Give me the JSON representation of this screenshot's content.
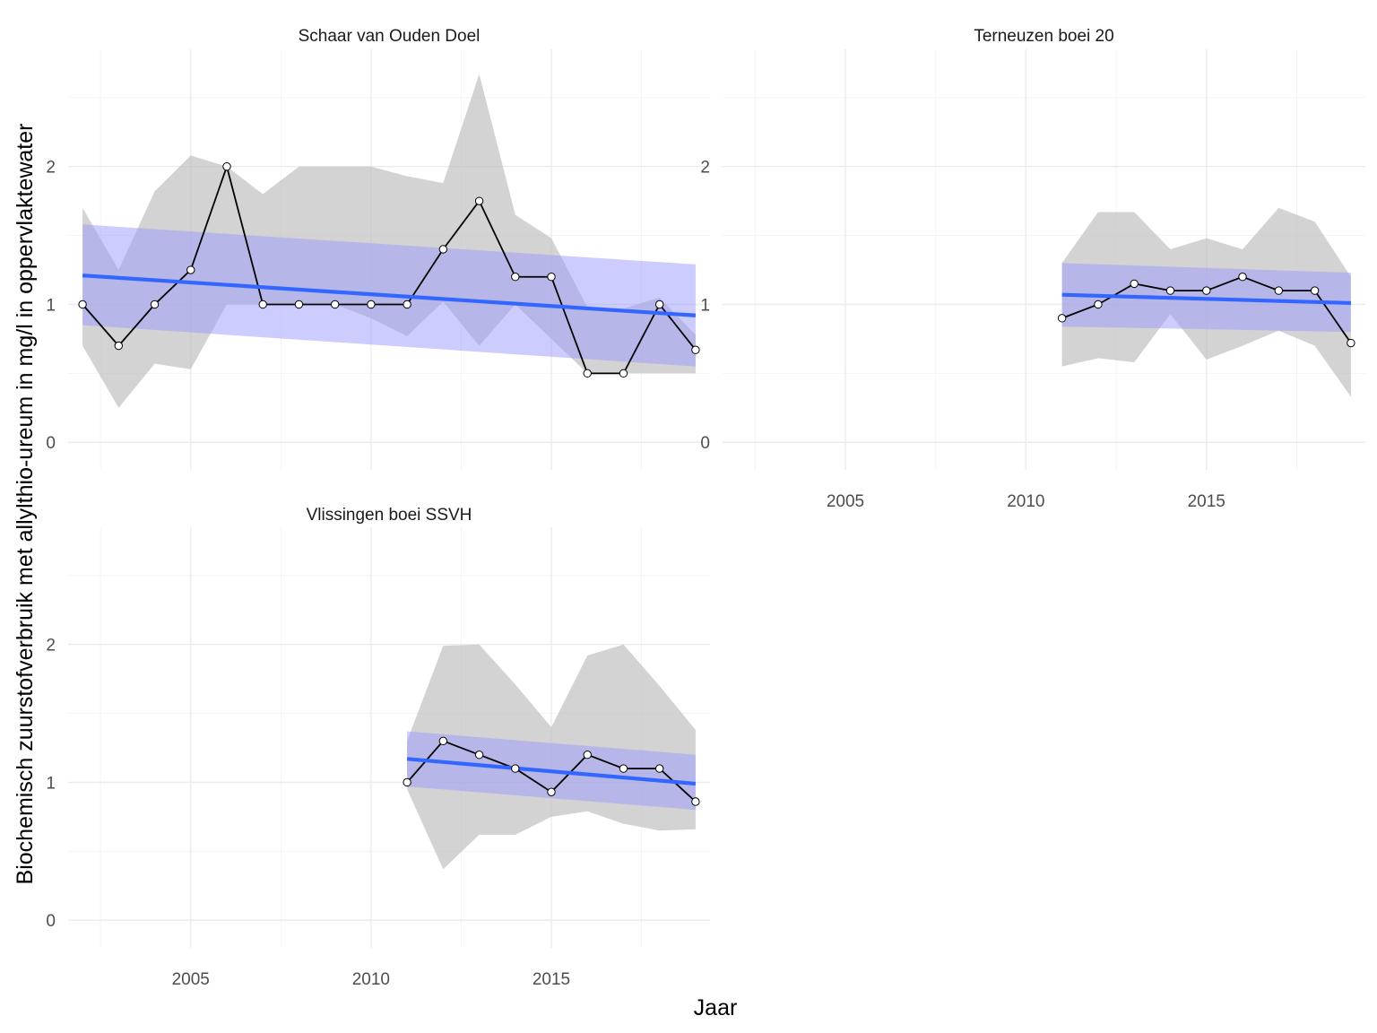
{
  "chart_data": {
    "type": "line",
    "xlabel": "Jaar",
    "ylabel": "Biochemisch zuurstofverbruik met allylthio-ureum in mg/l in oppervlaktewater",
    "xlim": [
      2001.6,
      2019.4
    ],
    "ylim": [
      -0.2,
      2.85
    ],
    "x_ticks": [
      2005,
      2010,
      2015
    ],
    "x_minor_ticks": [
      2002.5,
      2007.5,
      2012.5,
      2017.5
    ],
    "y_ticks": [
      0,
      1,
      2
    ],
    "y_minor_ticks": [
      0.5,
      1.5,
      2.5
    ],
    "grid": true,
    "legend": "none",
    "colors": {
      "line": "#000000",
      "point_fill": "#ffffff",
      "range_band": "#bebebe",
      "trend_line": "#3366ff",
      "trend_band": "#9999ff"
    },
    "panels": [
      {
        "title": "Schaar van Ouden Doel",
        "show_x_tick_labels": false,
        "series": {
          "x": [
            2002,
            2003,
            2004,
            2005,
            2006,
            2007,
            2008,
            2009,
            2010,
            2011,
            2012,
            2013,
            2014,
            2015,
            2016,
            2017,
            2018,
            2019
          ],
          "y": [
            1.0,
            0.7,
            1.0,
            1.25,
            2.0,
            1.0,
            1.0,
            1.0,
            1.0,
            1.0,
            1.4,
            1.75,
            1.2,
            1.2,
            0.5,
            0.5,
            1.0,
            0.67
          ],
          "range_low": [
            0.7,
            0.25,
            0.57,
            0.53,
            1.0,
            1.0,
            1.0,
            1.0,
            0.9,
            0.77,
            1.02,
            0.7,
            1.0,
            0.75,
            0.5,
            0.5,
            0.5,
            0.5
          ],
          "range_high": [
            1.7,
            1.25,
            1.82,
            2.08,
            2.0,
            1.8,
            2.0,
            2.0,
            2.0,
            1.93,
            1.88,
            2.67,
            1.65,
            1.48,
            0.98,
            0.97,
            1.05,
            0.78
          ]
        },
        "trend": {
          "x": [
            2002,
            2019
          ],
          "y": [
            1.21,
            0.92
          ],
          "ci_low": [
            0.85,
            0.55
          ],
          "ci_high": [
            1.58,
            1.29
          ]
        }
      },
      {
        "title": "Terneuzen boei 20",
        "show_x_tick_labels": true,
        "series": {
          "x": [
            2011,
            2012,
            2013,
            2014,
            2015,
            2016,
            2017,
            2018,
            2019
          ],
          "y": [
            0.9,
            1.0,
            1.15,
            1.1,
            1.1,
            1.2,
            1.1,
            1.1,
            0.72
          ],
          "range_low": [
            0.55,
            0.61,
            0.58,
            0.93,
            0.6,
            0.7,
            0.81,
            0.7,
            0.33
          ],
          "range_high": [
            1.3,
            1.67,
            1.67,
            1.4,
            1.48,
            1.4,
            1.7,
            1.6,
            1.2
          ]
        },
        "trend": {
          "x": [
            2011,
            2019
          ],
          "y": [
            1.07,
            1.01
          ],
          "ci_low": [
            0.84,
            0.8
          ],
          "ci_high": [
            1.3,
            1.23
          ]
        }
      },
      {
        "title": "Vlissingen boei SSVH",
        "show_x_tick_labels": true,
        "series": {
          "x": [
            2011,
            2012,
            2013,
            2014,
            2015,
            2016,
            2017,
            2018,
            2019
          ],
          "y": [
            1.0,
            1.3,
            1.2,
            1.1,
            0.93,
            1.2,
            1.1,
            1.1,
            0.86
          ],
          "range_low": [
            0.95,
            0.37,
            0.62,
            0.62,
            0.75,
            0.79,
            0.7,
            0.65,
            0.66
          ],
          "range_high": [
            1.3,
            1.99,
            2.0,
            1.71,
            1.4,
            1.92,
            2.0,
            1.7,
            1.38
          ]
        },
        "trend": {
          "x": [
            2011,
            2019
          ],
          "y": [
            1.17,
            0.99
          ],
          "ci_low": [
            0.97,
            0.8
          ],
          "ci_high": [
            1.37,
            1.2
          ]
        }
      }
    ]
  }
}
